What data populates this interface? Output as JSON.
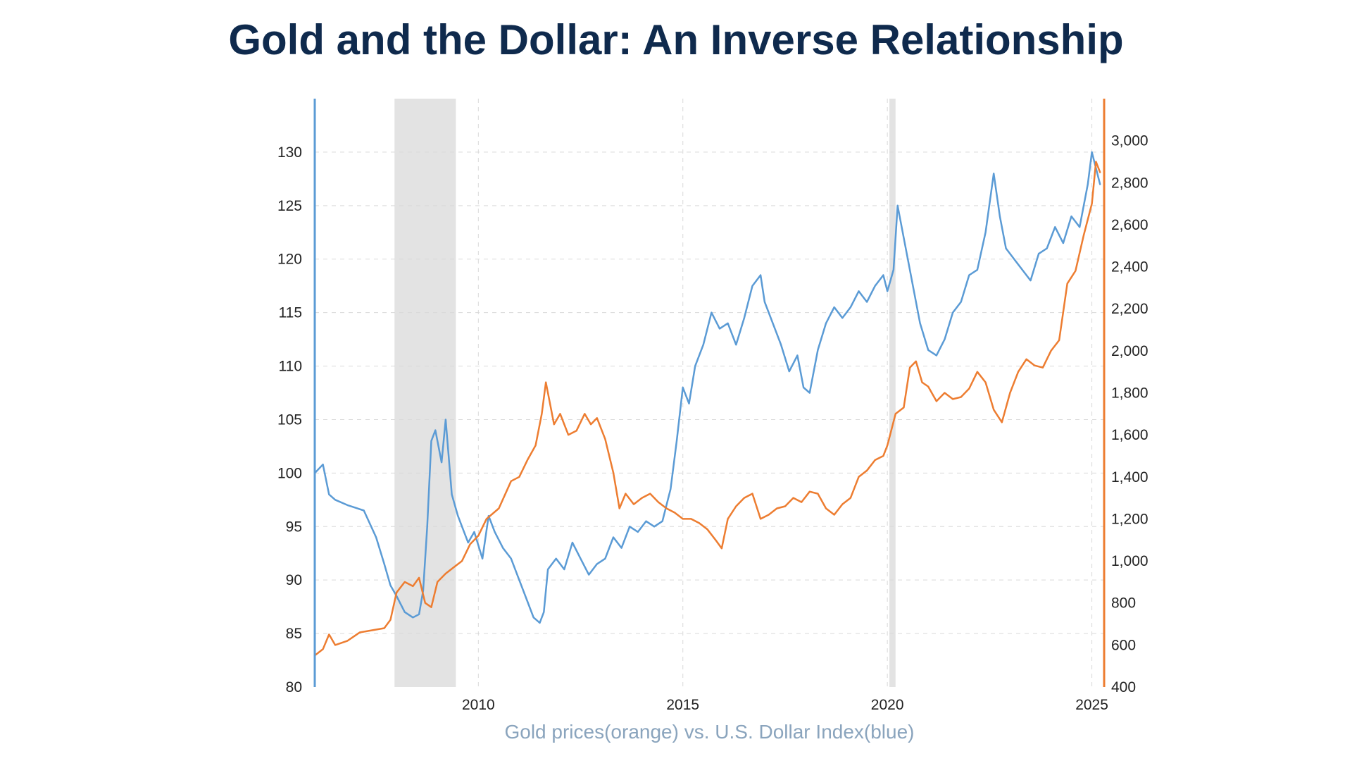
{
  "chart_data": {
    "type": "line",
    "title": "Gold and the Dollar: An Inverse Relationship",
    "xlabel": "Gold prices(orange) vs. U.S. Dollar Index(blue)",
    "x_range": [
      2006.0,
      2025.3
    ],
    "x_ticks": [
      2010,
      2015,
      2020,
      2025
    ],
    "y_left": {
      "range": [
        80,
        135
      ],
      "ticks": [
        80,
        85,
        90,
        95,
        100,
        105,
        110,
        115,
        120,
        125,
        130
      ]
    },
    "y_right": {
      "range": [
        400,
        3200
      ],
      "ticks": [
        400,
        600,
        800,
        1000,
        1200,
        1400,
        1600,
        1800,
        2000,
        2200,
        2400,
        2600,
        2800,
        3000
      ],
      "tick_labels": [
        "400",
        "600",
        "800",
        "1,000",
        "1,200",
        "1,400",
        "1,600",
        "1,800",
        "2,000",
        "2,200",
        "2,400",
        "2,600",
        "2,800",
        "3,000"
      ]
    },
    "shaded_periods": [
      [
        2007.95,
        2009.45
      ],
      [
        2020.05,
        2020.2
      ]
    ],
    "grid": true,
    "series": [
      {
        "axis": "left",
        "color": "#5b9bd5",
        "x": [
          2006.0,
          2006.2,
          2006.35,
          2006.5,
          2006.8,
          2007.2,
          2007.5,
          2007.7,
          2007.85,
          2008.0,
          2008.2,
          2008.4,
          2008.55,
          2008.65,
          2008.75,
          2008.85,
          2008.95,
          2009.1,
          2009.2,
          2009.35,
          2009.5,
          2009.6,
          2009.75,
          2009.9,
          2010.1,
          2010.25,
          2010.4,
          2010.6,
          2010.8,
          2011.0,
          2011.2,
          2011.35,
          2011.5,
          2011.6,
          2011.7,
          2011.9,
          2012.1,
          2012.3,
          2012.5,
          2012.7,
          2012.9,
          2013.1,
          2013.3,
          2013.5,
          2013.7,
          2013.9,
          2014.1,
          2014.3,
          2014.5,
          2014.7,
          2014.85,
          2015.0,
          2015.15,
          2015.3,
          2015.5,
          2015.7,
          2015.9,
          2016.1,
          2016.3,
          2016.5,
          2016.7,
          2016.9,
          2017.0,
          2017.2,
          2017.4,
          2017.6,
          2017.8,
          2017.95,
          2018.1,
          2018.3,
          2018.5,
          2018.7,
          2018.9,
          2019.1,
          2019.3,
          2019.5,
          2019.7,
          2019.9,
          2020.0,
          2020.15,
          2020.25,
          2020.4,
          2020.6,
          2020.8,
          2021.0,
          2021.2,
          2021.4,
          2021.6,
          2021.8,
          2022.0,
          2022.2,
          2022.4,
          2022.6,
          2022.75,
          2022.9,
          2023.1,
          2023.3,
          2023.5,
          2023.7,
          2023.9,
          2024.1,
          2024.3,
          2024.5,
          2024.7,
          2024.9,
          2025.0,
          2025.1,
          2025.2
        ],
        "values": [
          100.0,
          100.8,
          98.0,
          97.5,
          97.0,
          96.5,
          94.0,
          91.5,
          89.5,
          88.5,
          87.0,
          86.5,
          86.8,
          89.0,
          95.0,
          103.0,
          104.0,
          101.0,
          105.0,
          98.0,
          96.0,
          95.0,
          93.5,
          94.5,
          92.0,
          96.0,
          94.5,
          93.0,
          92.0,
          90.0,
          88.0,
          86.5,
          86.0,
          87.0,
          91.0,
          92.0,
          91.0,
          93.5,
          92.0,
          90.5,
          91.5,
          92.0,
          94.0,
          93.0,
          95.0,
          94.5,
          95.5,
          95.0,
          95.5,
          98.5,
          103.0,
          108.0,
          106.5,
          110.0,
          112.0,
          115.0,
          113.5,
          114.0,
          112.0,
          114.5,
          117.5,
          118.5,
          116.0,
          114.0,
          112.0,
          109.5,
          111.0,
          108.0,
          107.5,
          111.5,
          114.0,
          115.5,
          114.5,
          115.5,
          117.0,
          116.0,
          117.5,
          118.5,
          117.0,
          119.0,
          125.0,
          122.0,
          118.0,
          114.0,
          111.5,
          111.0,
          112.5,
          115.0,
          116.0,
          118.5,
          119.0,
          122.5,
          128.0,
          124.0,
          121.0,
          120.0,
          119.0,
          118.0,
          120.5,
          121.0,
          123.0,
          121.5,
          124.0,
          123.0,
          127.0,
          130.0,
          128.5,
          127.0
        ]
      },
      {
        "axis": "right",
        "color": "#ed7d31",
        "x": [
          2006.0,
          2006.2,
          2006.35,
          2006.5,
          2006.8,
          2007.1,
          2007.4,
          2007.7,
          2007.85,
          2008.0,
          2008.2,
          2008.4,
          2008.55,
          2008.7,
          2008.85,
          2009.0,
          2009.2,
          2009.4,
          2009.6,
          2009.8,
          2010.0,
          2010.2,
          2010.5,
          2010.8,
          2011.0,
          2011.2,
          2011.4,
          2011.55,
          2011.65,
          2011.75,
          2011.85,
          2012.0,
          2012.2,
          2012.4,
          2012.6,
          2012.75,
          2012.9,
          2013.1,
          2013.3,
          2013.45,
          2013.6,
          2013.8,
          2014.0,
          2014.2,
          2014.4,
          2014.6,
          2014.8,
          2015.0,
          2015.2,
          2015.4,
          2015.6,
          2015.8,
          2015.95,
          2016.1,
          2016.3,
          2016.5,
          2016.7,
          2016.9,
          2017.1,
          2017.3,
          2017.5,
          2017.7,
          2017.9,
          2018.1,
          2018.3,
          2018.5,
          2018.7,
          2018.9,
          2019.1,
          2019.3,
          2019.5,
          2019.7,
          2019.9,
          2020.0,
          2020.2,
          2020.4,
          2020.55,
          2020.7,
          2020.85,
          2021.0,
          2021.2,
          2021.4,
          2021.6,
          2021.8,
          2022.0,
          2022.2,
          2022.4,
          2022.6,
          2022.8,
          2023.0,
          2023.2,
          2023.4,
          2023.6,
          2023.8,
          2024.0,
          2024.2,
          2024.4,
          2024.6,
          2024.8,
          2025.0,
          2025.1,
          2025.2
        ],
        "values": [
          550,
          580,
          650,
          600,
          620,
          660,
          670,
          680,
          720,
          850,
          900,
          880,
          920,
          800,
          780,
          900,
          940,
          970,
          1000,
          1080,
          1120,
          1200,
          1250,
          1380,
          1400,
          1480,
          1550,
          1700,
          1850,
          1750,
          1650,
          1700,
          1600,
          1620,
          1700,
          1650,
          1680,
          1580,
          1420,
          1250,
          1320,
          1270,
          1300,
          1320,
          1280,
          1250,
          1230,
          1200,
          1200,
          1180,
          1150,
          1100,
          1060,
          1200,
          1260,
          1300,
          1320,
          1200,
          1220,
          1250,
          1260,
          1300,
          1280,
          1330,
          1320,
          1250,
          1220,
          1270,
          1300,
          1400,
          1430,
          1480,
          1500,
          1550,
          1700,
          1730,
          1920,
          1950,
          1850,
          1830,
          1760,
          1800,
          1770,
          1780,
          1820,
          1900,
          1850,
          1720,
          1660,
          1800,
          1900,
          1960,
          1930,
          1920,
          2000,
          2050,
          2320,
          2380,
          2550,
          2700,
          2900,
          2850
        ]
      }
    ]
  }
}
